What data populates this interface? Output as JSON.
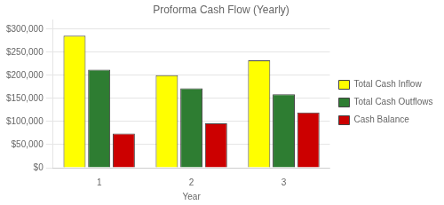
{
  "chart_data": {
    "type": "bar",
    "title": "Proforma Cash Flow (Yearly)",
    "x_label": "Year",
    "categories": [
      "1",
      "2",
      "3"
    ],
    "series": [
      {
        "name": "Total Cash Inflow",
        "color": "#ffff00",
        "values": [
          285700,
          200095,
          232452
        ]
      },
      {
        "name": "Total Cash Outflows",
        "color": "#2e7d32",
        "values": [
          212159,
          171897,
          158888
        ]
      },
      {
        "name": "Cash Balance",
        "color": "#cc0000",
        "values": [
          73841,
          95910,
          119645
        ]
      }
    ],
    "ylim": [
      0,
      320000
    ],
    "yticks": [
      {
        "value": 0,
        "label": "$0"
      },
      {
        "value": 50000,
        "label": "$50,000"
      },
      {
        "value": 100000,
        "label": "$100,000"
      },
      {
        "value": 150000,
        "label": "$150,000"
      },
      {
        "value": 200000,
        "label": "$200,000"
      },
      {
        "value": 250000,
        "label": "$250,000"
      },
      {
        "value": 300000,
        "label": "$300,000"
      }
    ],
    "grid": true,
    "legend": "right"
  }
}
